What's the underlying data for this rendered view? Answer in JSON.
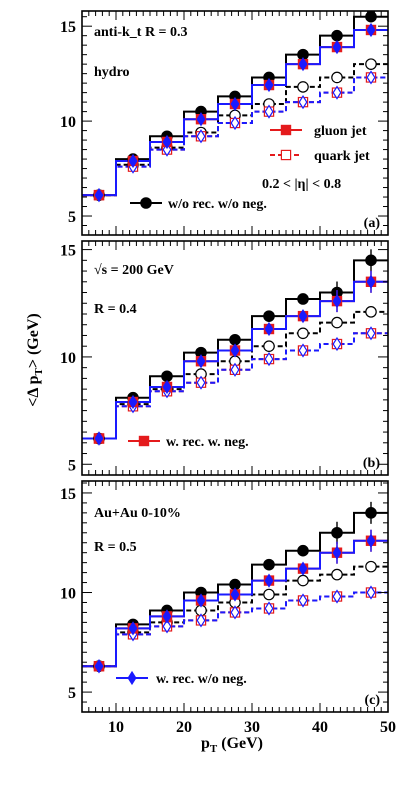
{
  "figure": {
    "xlabel": "p_T (GeV)",
    "ylabel": "<Δ p_T> (GeV)",
    "xticks": [
      "10",
      "20",
      "30",
      "40",
      "50"
    ]
  },
  "legend": {
    "gluon_jet": "gluon jet",
    "quark_jet": "quark jet"
  },
  "colors": {
    "red": "#e41a1c",
    "blue": "#1a1aff",
    "black": "#000000"
  },
  "chart_data": [
    {
      "type": "line",
      "panel_label": "(a)",
      "annotations": [
        "anti-k_t R = 0.3",
        "hydro",
        "0.2 < |η| < 0.8"
      ],
      "marker_legend": "w/o rec. w/o neg.",
      "bin_edges": [
        5,
        10,
        15,
        20,
        25,
        30,
        35,
        40,
        45,
        50
      ],
      "x": [
        7.5,
        12.5,
        17.5,
        22.5,
        27.5,
        32.5,
        37.5,
        42.5,
        47.5
      ],
      "xlim": [
        5,
        50
      ],
      "ylim": [
        4,
        15.8
      ],
      "yticks": [
        5,
        10,
        15
      ],
      "series": [
        {
          "style": "gluon-filled-circle",
          "values": [
            6.1,
            8.0,
            9.2,
            10.5,
            11.3,
            12.3,
            13.5,
            14.5,
            15.5
          ]
        },
        {
          "style": "gluon-filled-square",
          "values": [
            6.1,
            7.9,
            8.9,
            10.1,
            10.9,
            11.9,
            13.0,
            13.9,
            14.8
          ]
        },
        {
          "style": "gluon-filled-diamond",
          "values": [
            6.1,
            7.9,
            8.9,
            10.1,
            10.9,
            11.9,
            13.0,
            13.9,
            14.8
          ]
        },
        {
          "style": "quark-open-circle",
          "values": [
            6.1,
            7.7,
            8.6,
            9.4,
            10.3,
            10.9,
            11.8,
            12.3,
            13.0
          ]
        },
        {
          "style": "quark-open-square",
          "values": [
            6.1,
            7.6,
            8.5,
            9.2,
            9.9,
            10.5,
            11.0,
            11.5,
            12.3
          ]
        },
        {
          "style": "quark-open-diamond",
          "values": [
            6.1,
            7.6,
            8.5,
            9.2,
            9.9,
            10.5,
            11.0,
            11.5,
            12.3
          ]
        }
      ]
    },
    {
      "type": "line",
      "panel_label": "(b)",
      "annotations": [
        "√s = 200 GeV",
        "R = 0.4"
      ],
      "marker_legend": "w. rec. w. neg.",
      "bin_edges": [
        5,
        10,
        15,
        20,
        25,
        30,
        35,
        40,
        45,
        50
      ],
      "x": [
        7.5,
        12.5,
        17.5,
        22.5,
        27.5,
        32.5,
        37.5,
        42.5,
        47.5
      ],
      "xlim": [
        5,
        50
      ],
      "ylim": [
        4.5,
        15.4
      ],
      "yticks": [
        5,
        10,
        15
      ],
      "series": [
        {
          "style": "gluon-filled-circle",
          "values": [
            6.2,
            8.1,
            9.1,
            10.2,
            10.8,
            11.9,
            12.7,
            13.0,
            14.5
          ]
        },
        {
          "style": "gluon-filled-square",
          "values": [
            6.2,
            7.9,
            8.6,
            9.8,
            10.3,
            11.3,
            11.9,
            12.6,
            13.5
          ]
        },
        {
          "style": "gluon-filled-diamond",
          "values": [
            6.2,
            7.9,
            8.6,
            9.8,
            10.3,
            11.3,
            11.9,
            12.6,
            13.5
          ]
        },
        {
          "style": "quark-open-circle",
          "values": [
            6.2,
            7.8,
            8.5,
            9.2,
            9.8,
            10.5,
            11.1,
            11.6,
            12.1
          ]
        },
        {
          "style": "quark-open-square",
          "values": [
            6.2,
            7.7,
            8.4,
            8.8,
            9.4,
            9.9,
            10.3,
            10.6,
            11.1
          ]
        },
        {
          "style": "quark-open-diamond",
          "values": [
            6.2,
            7.7,
            8.4,
            8.8,
            9.4,
            9.9,
            10.3,
            10.6,
            11.1
          ]
        }
      ]
    },
    {
      "type": "line",
      "panel_label": "(c)",
      "annotations": [
        "Au+Au 0-10%",
        "R = 0.5"
      ],
      "marker_legend": "w. rec. w/o neg.",
      "bin_edges": [
        5,
        10,
        15,
        20,
        25,
        30,
        35,
        40,
        45,
        50
      ],
      "x": [
        7.5,
        12.5,
        17.5,
        22.5,
        27.5,
        32.5,
        37.5,
        42.5,
        47.5
      ],
      "xlim": [
        5,
        50
      ],
      "ylim": [
        4,
        15.6
      ],
      "yticks": [
        5,
        10,
        15
      ],
      "series": [
        {
          "style": "gluon-filled-circle",
          "values": [
            6.3,
            8.4,
            9.1,
            10.0,
            10.4,
            11.4,
            12.1,
            13.0,
            14.0
          ]
        },
        {
          "style": "gluon-filled-square",
          "values": [
            6.3,
            8.2,
            8.8,
            9.6,
            9.9,
            10.6,
            11.2,
            12.0,
            12.6
          ]
        },
        {
          "style": "gluon-filled-diamond",
          "values": [
            6.3,
            8.2,
            8.8,
            9.6,
            9.9,
            10.6,
            11.2,
            12.0,
            12.6
          ]
        },
        {
          "style": "quark-open-circle",
          "values": [
            6.3,
            8.0,
            8.5,
            9.1,
            9.5,
            9.9,
            10.6,
            10.9,
            11.3
          ]
        },
        {
          "style": "quark-open-square",
          "values": [
            6.3,
            7.9,
            8.3,
            8.6,
            9.0,
            9.2,
            9.6,
            9.8,
            10.0
          ]
        },
        {
          "style": "quark-open-diamond",
          "values": [
            6.3,
            7.9,
            8.3,
            8.6,
            9.0,
            9.2,
            9.6,
            9.8,
            10.0
          ]
        }
      ]
    }
  ]
}
